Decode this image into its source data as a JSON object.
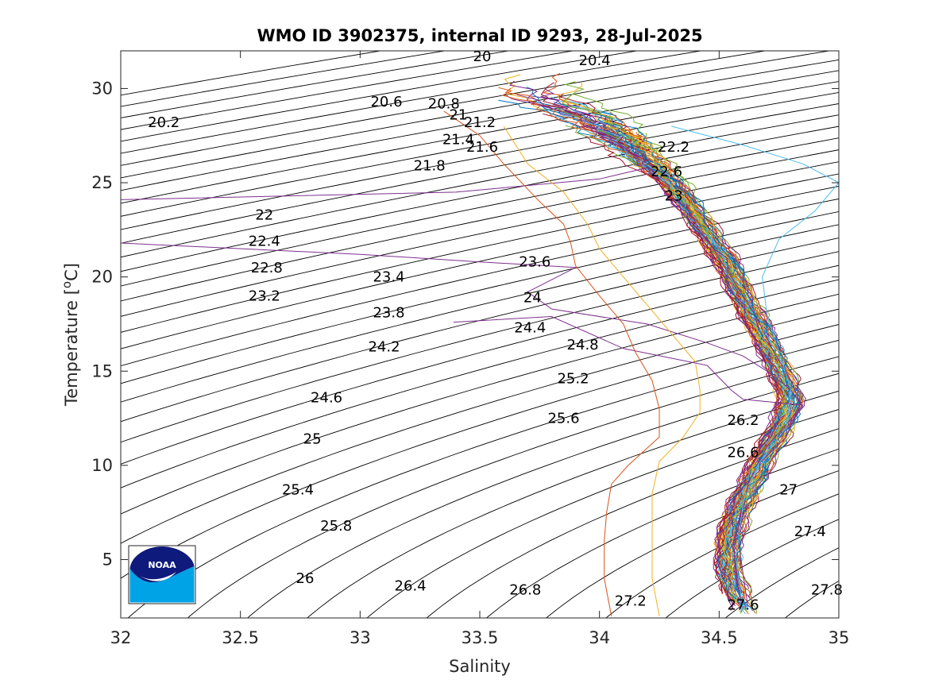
{
  "chart_data": {
    "type": "line",
    "title": "WMO ID 3902375, internal ID 9293, 28-Jul-2025",
    "xlabel": "Salinity",
    "ylabel_main": "Temperature [",
    "ylabel_sup": "o",
    "ylabel_tail": "C]",
    "xlim": [
      32,
      35
    ],
    "ylim": [
      1.9,
      32
    ],
    "xticks": [
      32,
      32.5,
      33,
      33.5,
      34,
      34.5,
      35
    ],
    "xtick_labels": [
      "32",
      "32.5",
      "33",
      "33.5",
      "34",
      "34.5",
      "35"
    ],
    "yticks": [
      5,
      10,
      15,
      20,
      25,
      30
    ],
    "ytick_labels": [
      "5",
      "10",
      "15",
      "20",
      "25",
      "30"
    ],
    "grid": false,
    "legend": "none",
    "logo": "noaa-logo",
    "density_contours": {
      "levels_from": 19.6,
      "levels_to": 28.6,
      "step": 0.2,
      "line_color": "#000000",
      "labels": [
        {
          "text": "20",
          "s": 33.51,
          "t": 31.7
        },
        {
          "text": "20.4",
          "s": 33.98,
          "t": 31.5
        },
        {
          "text": "20.2",
          "s": 32.18,
          "t": 28.2
        },
        {
          "text": "20.6",
          "s": 33.11,
          "t": 29.3
        },
        {
          "text": "20.8",
          "s": 33.35,
          "t": 29.2
        },
        {
          "text": "21",
          "s": 33.41,
          "t": 28.6
        },
        {
          "text": "21.2",
          "s": 33.5,
          "t": 28.2
        },
        {
          "text": "21.4",
          "s": 33.41,
          "t": 27.3
        },
        {
          "text": "21.6",
          "s": 33.51,
          "t": 26.9
        },
        {
          "text": "21.8",
          "s": 33.29,
          "t": 25.9
        },
        {
          "text": "22.2",
          "s": 34.31,
          "t": 26.9
        },
        {
          "text": "22.6",
          "s": 34.28,
          "t": 25.6
        },
        {
          "text": "23",
          "s": 34.31,
          "t": 24.3
        },
        {
          "text": "22",
          "s": 32.6,
          "t": 23.3
        },
        {
          "text": "22.4",
          "s": 32.6,
          "t": 21.9
        },
        {
          "text": "22.8",
          "s": 32.61,
          "t": 20.5
        },
        {
          "text": "23.2",
          "s": 32.6,
          "t": 19.0
        },
        {
          "text": "23.4",
          "s": 33.12,
          "t": 20.0
        },
        {
          "text": "23.6",
          "s": 33.73,
          "t": 20.8
        },
        {
          "text": "24",
          "s": 33.72,
          "t": 18.9
        },
        {
          "text": "23.8",
          "s": 33.12,
          "t": 18.1
        },
        {
          "text": "24.4",
          "s": 33.71,
          "t": 17.3
        },
        {
          "text": "24.2",
          "s": 33.1,
          "t": 16.3
        },
        {
          "text": "24.8",
          "s": 33.93,
          "t": 16.4
        },
        {
          "text": "25.2",
          "s": 33.89,
          "t": 14.6
        },
        {
          "text": "24.6",
          "s": 32.86,
          "t": 13.6
        },
        {
          "text": "25.6",
          "s": 33.85,
          "t": 12.5
        },
        {
          "text": "26.2",
          "s": 34.6,
          "t": 12.4
        },
        {
          "text": "25",
          "s": 32.8,
          "t": 11.4
        },
        {
          "text": "26.6",
          "s": 34.6,
          "t": 10.7
        },
        {
          "text": "25.4",
          "s": 32.74,
          "t": 8.7
        },
        {
          "text": "27",
          "s": 34.79,
          "t": 8.7
        },
        {
          "text": "25.8",
          "s": 32.9,
          "t": 6.8
        },
        {
          "text": "27.4",
          "s": 34.88,
          "t": 6.5
        },
        {
          "text": "26",
          "s": 32.77,
          "t": 4.0
        },
        {
          "text": "26.4",
          "s": 33.21,
          "t": 3.6
        },
        {
          "text": "26.8",
          "s": 33.69,
          "t": 3.4
        },
        {
          "text": "27.8",
          "s": 34.95,
          "t": 3.4
        },
        {
          "text": "27.2",
          "s": 34.13,
          "t": 2.8
        },
        {
          "text": "27.6",
          "s": 34.6,
          "t": 2.6
        }
      ]
    },
    "profiles": {
      "count": 60,
      "seed": 9293,
      "palette": [
        "#0072BD",
        "#D95319",
        "#EDB120",
        "#7E2F8E",
        "#77AC30",
        "#4DBEEE",
        "#A2142F"
      ],
      "core_path": [
        {
          "t": 29.5,
          "s": 33.75
        },
        {
          "t": 28.5,
          "s": 33.95
        },
        {
          "t": 27.0,
          "s": 34.12
        },
        {
          "t": 25.0,
          "s": 34.3
        },
        {
          "t": 23.0,
          "s": 34.42
        },
        {
          "t": 21.0,
          "s": 34.52
        },
        {
          "t": 19.0,
          "s": 34.6
        },
        {
          "t": 17.0,
          "s": 34.68
        },
        {
          "t": 15.0,
          "s": 34.76
        },
        {
          "t": 13.5,
          "s": 34.8
        },
        {
          "t": 12.0,
          "s": 34.76
        },
        {
          "t": 10.5,
          "s": 34.69
        },
        {
          "t": 9.0,
          "s": 34.63
        },
        {
          "t": 7.5,
          "s": 34.58
        },
        {
          "t": 6.0,
          "s": 34.54
        },
        {
          "t": 4.5,
          "s": 34.54
        },
        {
          "t": 3.0,
          "s": 34.58
        },
        {
          "t": 2.2,
          "s": 34.61
        }
      ],
      "special": [
        {
          "color": "#7E2F8E",
          "points": [
            {
              "s": 32.0,
              "t": 24.1
            },
            {
              "s": 33.4,
              "t": 24.5
            },
            {
              "s": 34.0,
              "t": 25.2
            },
            {
              "s": 34.2,
              "t": 25.8
            },
            {
              "s": 34.3,
              "t": 24.0
            },
            {
              "s": 34.45,
              "t": 22.0
            },
            {
              "s": 34.55,
              "t": 20.0
            },
            {
              "s": 34.65,
              "t": 18.0
            },
            {
              "s": 34.73,
              "t": 16.0
            },
            {
              "s": 34.8,
              "t": 14.5
            },
            {
              "s": 34.84,
              "t": 13.3
            },
            {
              "s": 34.78,
              "t": 11.5
            },
            {
              "s": 34.66,
              "t": 10.0
            },
            {
              "s": 34.6,
              "t": 8.0
            },
            {
              "s": 34.56,
              "t": 6.0
            },
            {
              "s": 34.57,
              "t": 4.0
            },
            {
              "s": 34.6,
              "t": 2.3
            }
          ]
        },
        {
          "color": "#7E2F8E",
          "points": [
            {
              "s": 32.0,
              "t": 21.8
            },
            {
              "s": 33.0,
              "t": 21.2
            },
            {
              "s": 33.5,
              "t": 20.8
            },
            {
              "s": 33.9,
              "t": 20.5
            },
            {
              "s": 33.7,
              "t": 19.2
            },
            {
              "s": 33.8,
              "t": 18.3
            },
            {
              "s": 34.2,
              "t": 17.5
            },
            {
              "s": 34.45,
              "t": 16.5
            },
            {
              "s": 34.6,
              "t": 15.8
            },
            {
              "s": 34.7,
              "t": 15.0
            },
            {
              "s": 34.8,
              "t": 14.0
            },
            {
              "s": 34.85,
              "t": 13.1
            },
            {
              "s": 34.75,
              "t": 11.5
            },
            {
              "s": 34.66,
              "t": 10.0
            },
            {
              "s": 34.6,
              "t": 8.0
            },
            {
              "s": 34.56,
              "t": 5.5
            },
            {
              "s": 34.6,
              "t": 2.4
            }
          ]
        },
        {
          "color": "#7E2F8E",
          "points": [
            {
              "s": 33.39,
              "t": 17.6
            },
            {
              "s": 33.8,
              "t": 17.9
            },
            {
              "s": 34.1,
              "t": 16.2
            },
            {
              "s": 34.45,
              "t": 15.3
            },
            {
              "s": 34.55,
              "t": 14.0
            },
            {
              "s": 34.6,
              "t": 13.5
            },
            {
              "s": 34.85,
              "t": 13.2
            },
            {
              "s": 34.7,
              "t": 11.0
            },
            {
              "s": 34.62,
              "t": 9.0
            },
            {
              "s": 34.58,
              "t": 6.0
            },
            {
              "s": 34.62,
              "t": 2.5
            }
          ]
        },
        {
          "color": "#D95319",
          "points": [
            {
              "s": 33.35,
              "t": 28.8
            },
            {
              "s": 33.5,
              "t": 27.5
            },
            {
              "s": 33.6,
              "t": 26.0
            },
            {
              "s": 33.75,
              "t": 24.0
            },
            {
              "s": 33.85,
              "t": 22.8
            },
            {
              "s": 33.88,
              "t": 21.8
            },
            {
              "s": 33.9,
              "t": 20.6
            },
            {
              "s": 34.0,
              "t": 19.0
            },
            {
              "s": 34.1,
              "t": 17.5
            },
            {
              "s": 34.15,
              "t": 16.0
            },
            {
              "s": 34.22,
              "t": 14.5
            },
            {
              "s": 34.25,
              "t": 13.0
            },
            {
              "s": 34.25,
              "t": 11.5
            },
            {
              "s": 34.12,
              "t": 10.0
            },
            {
              "s": 34.05,
              "t": 9.0
            },
            {
              "s": 34.03,
              "t": 7.5
            },
            {
              "s": 34.02,
              "t": 6.0
            },
            {
              "s": 34.02,
              "t": 4.0
            },
            {
              "s": 34.05,
              "t": 2.0
            }
          ]
        },
        {
          "color": "#EDB120",
          "points": [
            {
              "s": 33.6,
              "t": 28.0
            },
            {
              "s": 33.7,
              "t": 26.0
            },
            {
              "s": 33.85,
              "t": 24.5
            },
            {
              "s": 33.95,
              "t": 22.8
            },
            {
              "s": 34.0,
              "t": 21.5
            },
            {
              "s": 34.1,
              "t": 20.0
            },
            {
              "s": 34.2,
              "t": 18.5
            },
            {
              "s": 34.3,
              "t": 17.0
            },
            {
              "s": 34.4,
              "t": 15.5
            },
            {
              "s": 34.42,
              "t": 14.0
            },
            {
              "s": 34.42,
              "t": 12.8
            },
            {
              "s": 34.35,
              "t": 11.5
            },
            {
              "s": 34.25,
              "t": 10.2
            },
            {
              "s": 34.22,
              "t": 8.5
            },
            {
              "s": 34.22,
              "t": 6.0
            },
            {
              "s": 34.22,
              "t": 4.0
            },
            {
              "s": 34.25,
              "t": 2.0
            }
          ]
        },
        {
          "color": "#4DBEEE",
          "points": [
            {
              "s": 34.3,
              "t": 28.0
            },
            {
              "s": 34.6,
              "t": 27.0
            },
            {
              "s": 34.85,
              "t": 26.0
            },
            {
              "s": 35.0,
              "t": 25.0
            },
            {
              "s": 34.9,
              "t": 23.5
            },
            {
              "s": 34.75,
              "t": 22.0
            },
            {
              "s": 34.68,
              "t": 20.0
            },
            {
              "s": 34.7,
              "t": 18.0
            },
            {
              "s": 34.75,
              "t": 16.0
            },
            {
              "s": 34.8,
              "t": 14.0
            },
            {
              "s": 34.78,
              "t": 12.0
            },
            {
              "s": 34.66,
              "t": 10.0
            },
            {
              "s": 34.6,
              "t": 8.0
            },
            {
              "s": 34.57,
              "t": 5.0
            },
            {
              "s": 34.6,
              "t": 2.3
            }
          ]
        }
      ]
    }
  }
}
